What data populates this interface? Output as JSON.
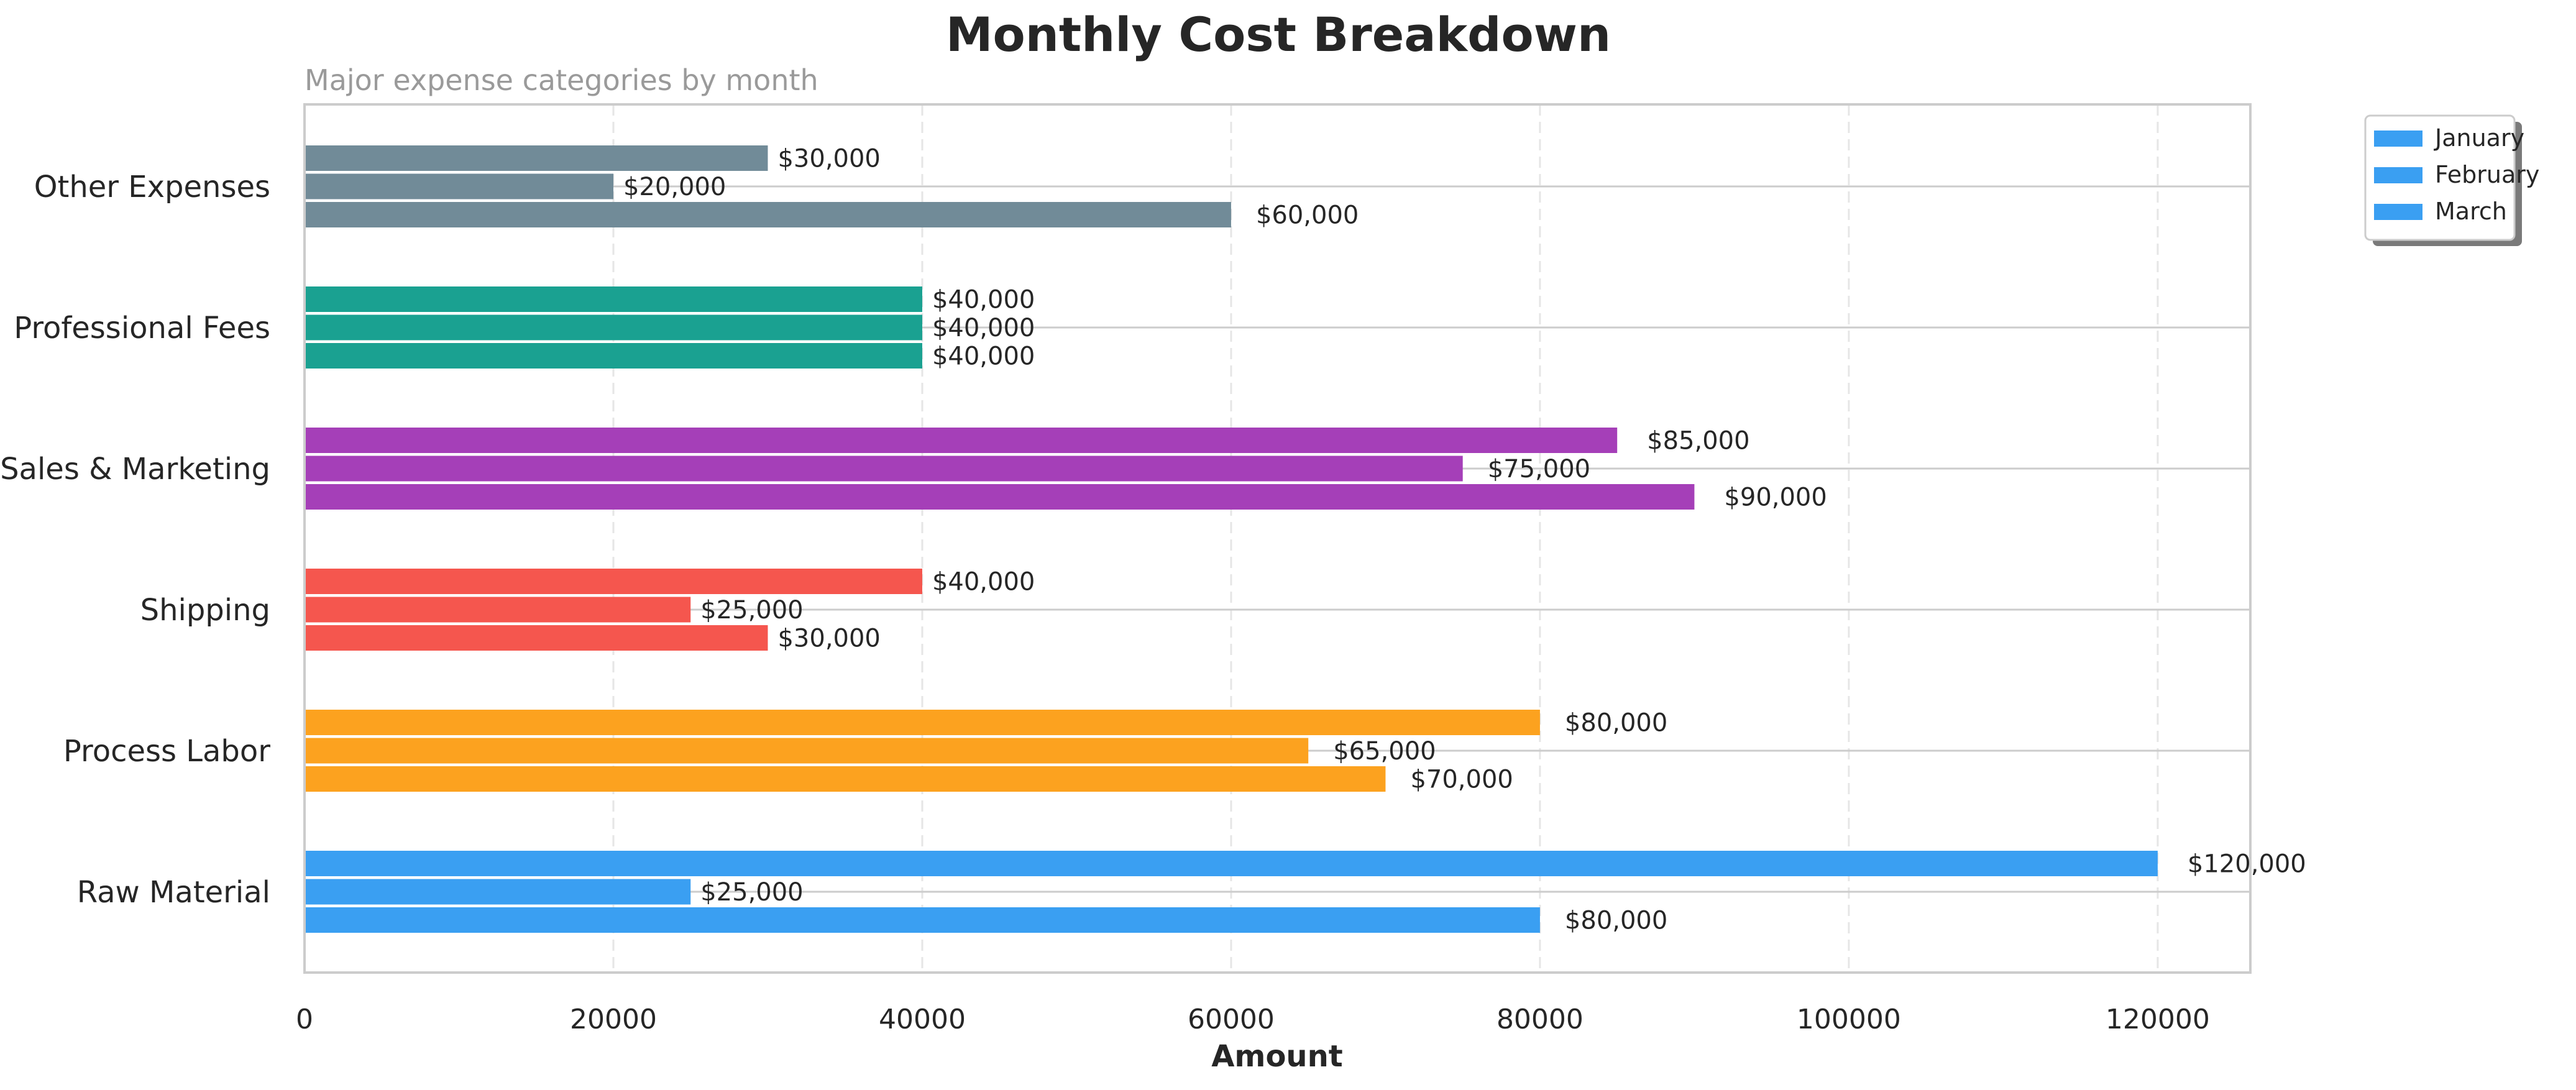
{
  "chart_data": {
    "type": "bar",
    "orientation": "horizontal",
    "title": "Monthly Cost Breakdown",
    "subtitle": "Major expense categories by month",
    "xlabel": "Amount",
    "ylabel": "",
    "xlim": [
      0,
      126000
    ],
    "xticks": [
      0,
      20000,
      40000,
      60000,
      80000,
      100000,
      120000
    ],
    "xtick_labels": [
      "0",
      "20000",
      "40000",
      "60000",
      "80000",
      "100000",
      "120000"
    ],
    "grid": "x-dashed",
    "legend_position": "upper-right-outside",
    "categories": [
      "Raw Material",
      "Process Labor",
      "Shipping",
      "Sales & Marketing",
      "Professional Fees",
      "Other Expenses"
    ],
    "category_colors": [
      "#3a9ff2",
      "#fca21f",
      "#f5564e",
      "#a53fb8",
      "#1aa191",
      "#718b98"
    ],
    "series": [
      {
        "name": "January",
        "values": [
          120000,
          80000,
          40000,
          85000,
          40000,
          30000
        ]
      },
      {
        "name": "February",
        "values": [
          25000,
          65000,
          25000,
          75000,
          40000,
          20000
        ]
      },
      {
        "name": "March",
        "values": [
          80000,
          70000,
          30000,
          90000,
          40000,
          60000
        ]
      }
    ],
    "legend_color": "#3a9ff2"
  }
}
